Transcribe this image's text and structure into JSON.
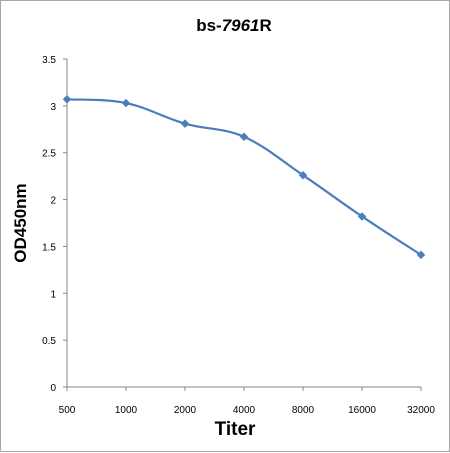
{
  "chart_data": {
    "type": "line",
    "title": {
      "prefix": "bs-",
      "number": "7961",
      "suffix": "R"
    },
    "xlabel": "Titer",
    "ylabel": "OD450nm",
    "categories": [
      "500",
      "1000",
      "2000",
      "4000",
      "8000",
      "16000",
      "32000"
    ],
    "series": [
      {
        "values": [
          3.07,
          3.03,
          2.81,
          2.67,
          2.26,
          1.82,
          1.41
        ],
        "color": "#4a7ebb"
      }
    ],
    "ylim": [
      0,
      3.5
    ],
    "yticks": [
      "0",
      "0.5",
      "1",
      "1.5",
      "2",
      "2.5",
      "3",
      "3.5"
    ],
    "grid": false,
    "legend": "none",
    "marker": "diamond"
  }
}
